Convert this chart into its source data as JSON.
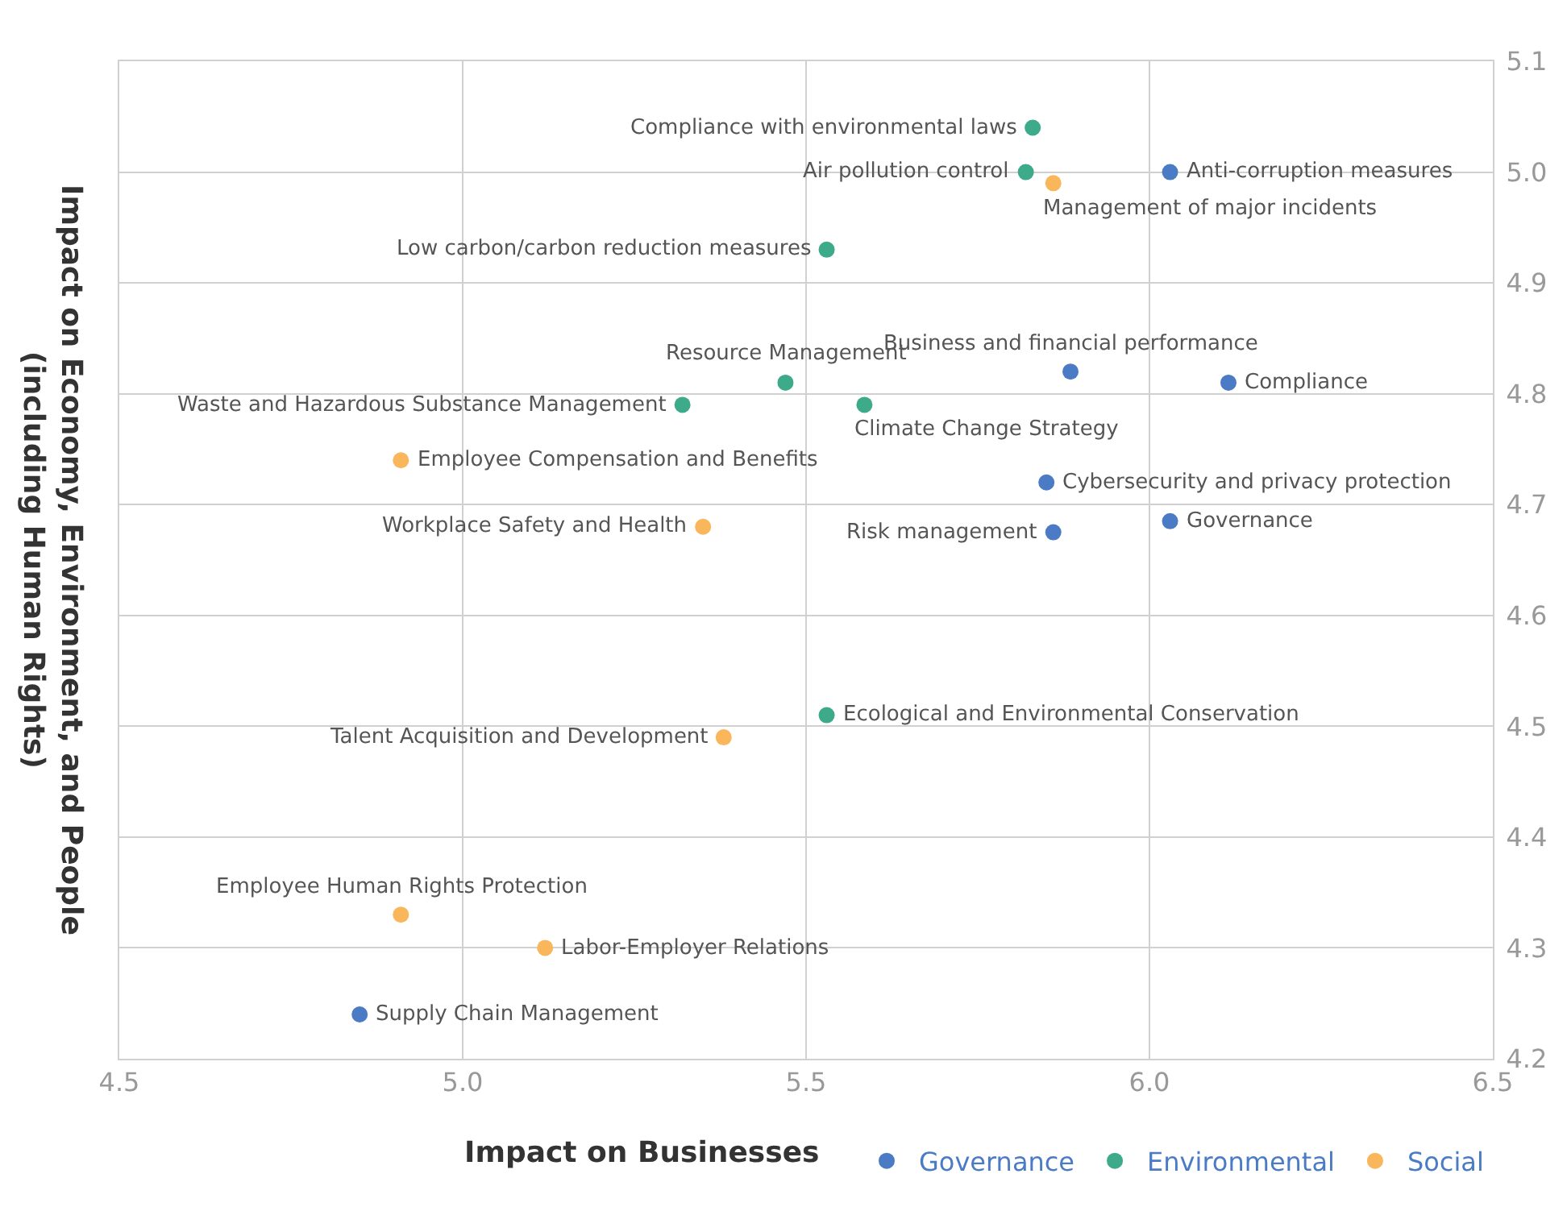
{
  "chart_data": {
    "type": "scatter",
    "xlabel": "Impact on Businesses",
    "ylabel": "Impact on Economy, Environment, and People (including Human Rights)",
    "xlim": [
      4.5,
      6.5
    ],
    "xticks": [
      4.5,
      {
        "value": 5,
        "label": "5.0"
      },
      5.5,
      {
        "value": 6,
        "label": "6.0"
      },
      6.5
    ],
    "ylim": [
      4.2,
      5.1
    ],
    "yticks": [
      4.2,
      4.3,
      4.4,
      4.5,
      4.6,
      4.7,
      4.8,
      4.9,
      {
        "value": 5,
        "label": "5.0"
      },
      5.1
    ],
    "grid": true,
    "legend": "bottom right",
    "marker": "circle",
    "series": [
      {
        "name": "Governance",
        "color": "#4a7bc4",
        "x": [
          6.03,
          5.885,
          6.115,
          5.85,
          6.03,
          5.86,
          4.85
        ],
        "values": [
          5.0,
          4.82,
          4.81,
          4.72,
          4.685,
          4.675,
          4.24
        ]
      },
      {
        "name": "Environmental",
        "color": "#3daa8a",
        "x": [
          5.83,
          5.82,
          5.53,
          5.47,
          5.32,
          5.585,
          5.53
        ],
        "values": [
          5.04,
          5.0,
          4.93,
          4.81,
          4.79,
          4.79,
          4.51
        ]
      },
      {
        "name": "Social",
        "color": "#f9b65a",
        "x": [
          5.86,
          4.91,
          5.35,
          5.38,
          4.91,
          5.12
        ],
        "values": [
          4.99,
          4.74,
          4.68,
          4.49,
          4.33,
          4.3
        ]
      }
    ],
    "annotations": [
      {
        "text": "Compliance with environmental laws",
        "x": 5.83,
        "y": 5.04
      },
      {
        "text": "Air pollution control",
        "x": 5.82,
        "y": 5.0
      },
      {
        "text": "Management of major incidents",
        "x": 5.86,
        "y": 4.99
      },
      {
        "text": "Anti-corruption measures",
        "x": 6.03,
        "y": 5.0
      },
      {
        "text": "Low carbon/carbon reduction measures",
        "x": 5.53,
        "y": 4.93
      },
      {
        "text": "Resource Management",
        "x": 5.47,
        "y": 4.81
      },
      {
        "text": "Waste and Hazardous Substance Management",
        "x": 5.32,
        "y": 4.79
      },
      {
        "text": "Climate Change Strategy",
        "x": 5.585,
        "y": 4.79
      },
      {
        "text": "Business and financial performance",
        "x": 5.885,
        "y": 4.82
      },
      {
        "text": "Compliance",
        "x": 6.115,
        "y": 4.81
      },
      {
        "text": "Employee Compensation and Benefits",
        "x": 4.91,
        "y": 4.74
      },
      {
        "text": "Cybersecurity and privacy protection",
        "x": 5.85,
        "y": 4.72
      },
      {
        "text": "Governance",
        "x": 6.03,
        "y": 4.685
      },
      {
        "text": "Workplace Safety and Health",
        "x": 5.35,
        "y": 4.68
      },
      {
        "text": "Risk management",
        "x": 5.86,
        "y": 4.675
      },
      {
        "text": "Ecological and Environmental Conservation",
        "x": 5.53,
        "y": 4.51
      },
      {
        "text": "Talent Acquisition and Development",
        "x": 5.38,
        "y": 4.49
      },
      {
        "text": "Employee Human Rights Protection",
        "x": 4.91,
        "y": 4.33
      },
      {
        "text": "Labor-Employer Relations",
        "x": 5.12,
        "y": 4.3
      },
      {
        "text": "Supply Chain Management",
        "x": 4.85,
        "y": 4.24
      }
    ]
  }
}
